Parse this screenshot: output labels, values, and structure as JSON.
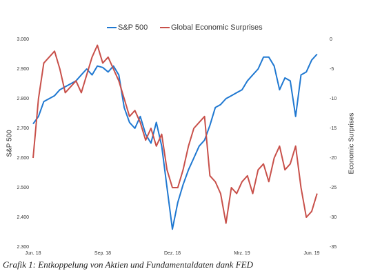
{
  "chart_data": {
    "type": "line",
    "caption": "Grafik 1: Entkoppelung von Aktien und Fundamentaldaten dank FED",
    "ylabel": "S&P 500",
    "y2label": "Economic Surprises",
    "categories": [
      "Jun. 18",
      null,
      null,
      null,
      null,
      null,
      null,
      null,
      null,
      null,
      null,
      null,
      null,
      "Sep. 18",
      null,
      null,
      null,
      null,
      null,
      null,
      null,
      null,
      null,
      null,
      null,
      null,
      "Dez. 18",
      null,
      null,
      null,
      null,
      null,
      null,
      null,
      null,
      null,
      null,
      null,
      null,
      "Mrz. 19",
      null,
      null,
      null,
      null,
      null,
      null,
      null,
      null,
      null,
      null,
      null,
      null,
      "Jun. 19",
      null
    ],
    "ylim": [
      2300,
      3000
    ],
    "yticks": [
      {
        "value": 2300,
        "label": "2.300"
      },
      {
        "value": 2400,
        "label": "2.400"
      },
      {
        "value": 2500,
        "label": "2.500"
      },
      {
        "value": 2600,
        "label": "2.600"
      },
      {
        "value": 2700,
        "label": "2.700"
      },
      {
        "value": 2800,
        "label": "2.800"
      },
      {
        "value": 2900,
        "label": "2.900"
      },
      {
        "value": 3000,
        "label": "3.000"
      }
    ],
    "y2lim": [
      -35,
      0
    ],
    "y2ticks": [
      -35,
      -30,
      -25,
      -20,
      -15,
      -10,
      -5,
      0
    ],
    "grid": false,
    "legend": "top",
    "series": [
      {
        "name": "S&P 500",
        "color": "#1f78d1",
        "values": [
          2715,
          2740,
          2790,
          2800,
          2810,
          2830,
          2840,
          2850,
          2860,
          2880,
          2900,
          2880,
          2910,
          2905,
          2890,
          2910,
          2880,
          2770,
          2720,
          2700,
          2740,
          2680,
          2650,
          2720,
          2640,
          2500,
          2360,
          2450,
          2510,
          2560,
          2600,
          2640,
          2660,
          2710,
          2770,
          2780,
          2800,
          2810,
          2820,
          2830,
          2860,
          2880,
          2900,
          2940,
          2940,
          2910,
          2830,
          2870,
          2860,
          2740,
          2880,
          2890,
          2930,
          2950
        ]
      },
      {
        "name": "Global Economic Surprises",
        "color": "#c8504a",
        "axis": "y2",
        "values": [
          -20,
          -10,
          -4,
          -3,
          -2,
          -5,
          -9,
          -8,
          -7,
          -9,
          -6,
          -3,
          -1,
          -4,
          -3,
          -5,
          -7,
          -10,
          -13,
          -12,
          -14,
          -17,
          -15,
          -18,
          -16,
          -22,
          -25,
          -25,
          -22,
          -18,
          -15,
          -14,
          -13,
          -23,
          -24,
          -26,
          -31,
          -25,
          -26,
          -24,
          -23,
          -26,
          -22,
          -21,
          -24,
          -20,
          -18,
          -22,
          -21,
          -18,
          -25,
          -30,
          -29,
          -26
        ]
      }
    ]
  }
}
